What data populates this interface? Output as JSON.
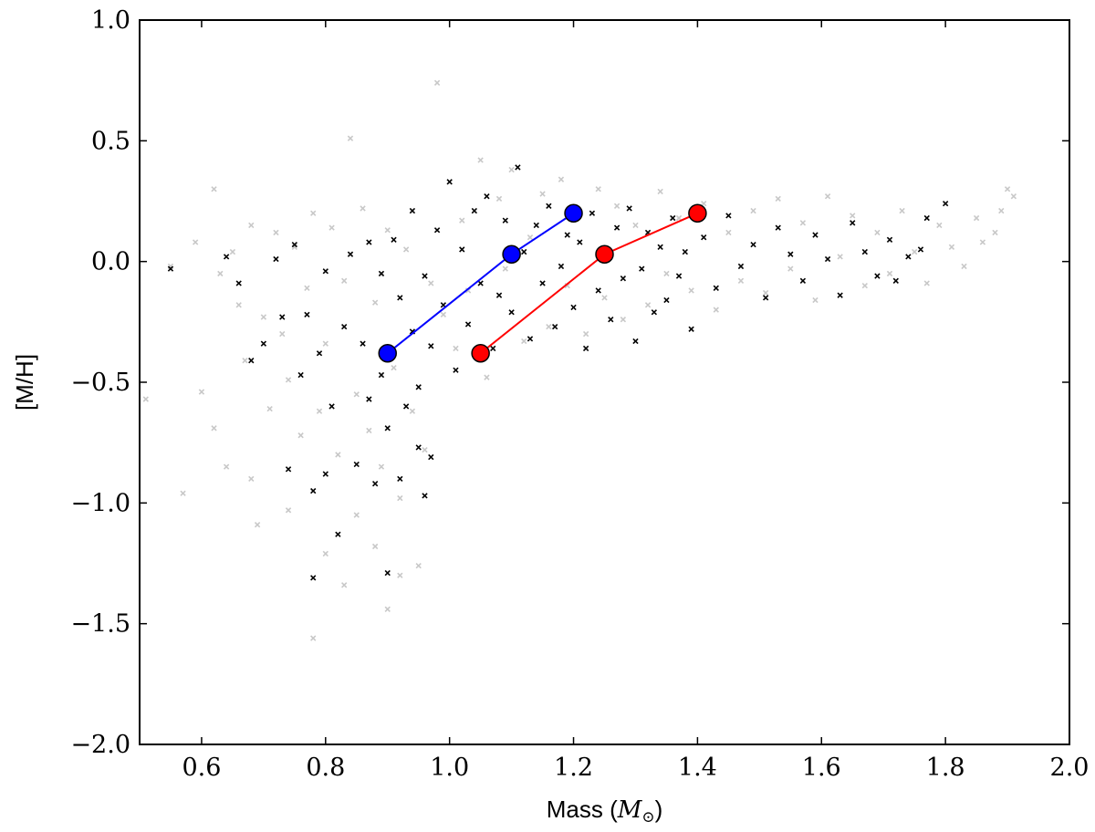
{
  "chart_data": {
    "type": "scatter",
    "title": "",
    "xlabel": "Mass",
    "xlabel_unit_symbol": "M",
    "xlabel_unit_subscript": "⊙",
    "ylabel": "[M/H]",
    "xlim": [
      0.5,
      2.0
    ],
    "ylim": [
      -2.0,
      1.0
    ],
    "xticks": [
      "0.6",
      "0.8",
      "1.0",
      "1.2",
      "1.4",
      "1.6",
      "1.8",
      "2.0"
    ],
    "xtick_values": [
      0.6,
      0.8,
      1.0,
      1.2,
      1.4,
      1.6,
      1.8,
      2.0
    ],
    "yticks": [
      "−2.0",
      "−1.5",
      "−1.0",
      "−0.5",
      "0.0",
      "0.5",
      "1.0"
    ],
    "ytick_values": [
      -2.0,
      -1.5,
      -1.0,
      -0.5,
      0.0,
      0.5,
      1.0
    ],
    "grid": false,
    "legend": "none",
    "marker": "x",
    "series": [
      {
        "color": "#c8c8c8",
        "points": [
          [
            0.51,
            -0.57
          ],
          [
            0.55,
            -0.02
          ],
          [
            0.57,
            -0.96
          ],
          [
            0.59,
            0.08
          ],
          [
            0.6,
            -0.54
          ],
          [
            0.62,
            0.3
          ],
          [
            0.62,
            -0.69
          ],
          [
            0.63,
            -0.05
          ],
          [
            0.64,
            -0.85
          ],
          [
            0.65,
            0.04
          ],
          [
            0.66,
            -0.18
          ],
          [
            0.67,
            -0.41
          ],
          [
            0.68,
            0.15
          ],
          [
            0.68,
            -0.9
          ],
          [
            0.69,
            -1.09
          ],
          [
            0.7,
            -0.23
          ],
          [
            0.71,
            -0.61
          ],
          [
            0.72,
            0.12
          ],
          [
            0.73,
            -0.3
          ],
          [
            0.74,
            -0.49
          ],
          [
            0.74,
            -1.03
          ],
          [
            0.75,
            0.06
          ],
          [
            0.76,
            -0.72
          ],
          [
            0.77,
            -0.11
          ],
          [
            0.78,
            0.2
          ],
          [
            0.78,
            -1.56
          ],
          [
            0.79,
            -0.62
          ],
          [
            0.8,
            -0.34
          ],
          [
            0.8,
            -1.21
          ],
          [
            0.81,
            0.14
          ],
          [
            0.82,
            -0.8
          ],
          [
            0.83,
            -0.08
          ],
          [
            0.83,
            -1.34
          ],
          [
            0.84,
            0.51
          ],
          [
            0.85,
            -0.55
          ],
          [
            0.85,
            -1.05
          ],
          [
            0.86,
            0.22
          ],
          [
            0.87,
            -0.7
          ],
          [
            0.88,
            -0.17
          ],
          [
            0.88,
            -1.18
          ],
          [
            0.89,
            -0.85
          ],
          [
            0.9,
            -1.44
          ],
          [
            0.9,
            0.13
          ],
          [
            0.91,
            -0.44
          ],
          [
            0.92,
            -0.98
          ],
          [
            0.92,
            -1.3
          ],
          [
            0.93,
            0.05
          ],
          [
            0.94,
            -0.62
          ],
          [
            0.95,
            -1.26
          ],
          [
            0.96,
            -0.78
          ],
          [
            0.97,
            -0.09
          ],
          [
            0.98,
            0.74
          ],
          [
            0.99,
            -0.22
          ],
          [
            1.0,
            0.33
          ],
          [
            1.01,
            -0.36
          ],
          [
            1.02,
            0.17
          ],
          [
            1.03,
            -0.12
          ],
          [
            1.05,
            0.42
          ],
          [
            1.06,
            -0.48
          ],
          [
            1.08,
            0.26
          ],
          [
            1.09,
            -0.03
          ],
          [
            1.1,
            0.38
          ],
          [
            1.12,
            -0.33
          ],
          [
            1.13,
            0.1
          ],
          [
            1.15,
            0.28
          ],
          [
            1.16,
            -0.27
          ],
          [
            1.18,
            0.34
          ],
          [
            1.19,
            -0.1
          ],
          [
            1.2,
            0.19
          ],
          [
            1.22,
            -0.3
          ],
          [
            1.24,
            0.3
          ],
          [
            1.25,
            -0.15
          ],
          [
            1.27,
            0.23
          ],
          [
            1.28,
            -0.24
          ],
          [
            1.3,
            0.15
          ],
          [
            1.32,
            -0.18
          ],
          [
            1.34,
            0.29
          ],
          [
            1.35,
            -0.05
          ],
          [
            1.37,
            0.18
          ],
          [
            1.39,
            -0.12
          ],
          [
            1.41,
            0.24
          ],
          [
            1.43,
            -0.2
          ],
          [
            1.45,
            0.12
          ],
          [
            1.47,
            -0.08
          ],
          [
            1.49,
            0.21
          ],
          [
            1.51,
            -0.13
          ],
          [
            1.53,
            0.26
          ],
          [
            1.55,
            -0.03
          ],
          [
            1.57,
            0.16
          ],
          [
            1.59,
            -0.16
          ],
          [
            1.61,
            0.27
          ],
          [
            1.63,
            0.02
          ],
          [
            1.65,
            0.19
          ],
          [
            1.67,
            -0.1
          ],
          [
            1.69,
            0.12
          ],
          [
            1.71,
            -0.05
          ],
          [
            1.73,
            0.21
          ],
          [
            1.75,
            0.04
          ],
          [
            1.77,
            -0.09
          ],
          [
            1.79,
            0.15
          ],
          [
            1.81,
            0.06
          ],
          [
            1.83,
            -0.02
          ],
          [
            1.85,
            0.18
          ],
          [
            1.86,
            0.08
          ],
          [
            1.88,
            0.12
          ],
          [
            1.89,
            0.21
          ],
          [
            1.9,
            0.3
          ],
          [
            1.91,
            0.27
          ]
        ]
      },
      {
        "color": "#000000",
        "points": [
          [
            0.55,
            -0.03
          ],
          [
            0.64,
            0.02
          ],
          [
            0.66,
            -0.09
          ],
          [
            0.68,
            -0.41
          ],
          [
            0.7,
            -0.34
          ],
          [
            0.72,
            0.01
          ],
          [
            0.73,
            -0.23
          ],
          [
            0.74,
            -0.86
          ],
          [
            0.75,
            0.07
          ],
          [
            0.76,
            -0.47
          ],
          [
            0.77,
            -0.22
          ],
          [
            0.78,
            -0.95
          ],
          [
            0.78,
            -1.31
          ],
          [
            0.79,
            -0.38
          ],
          [
            0.8,
            -0.04
          ],
          [
            0.8,
            -0.88
          ],
          [
            0.81,
            -0.6
          ],
          [
            0.82,
            -1.13
          ],
          [
            0.83,
            -0.27
          ],
          [
            0.84,
            0.03
          ],
          [
            0.85,
            -0.84
          ],
          [
            0.86,
            -0.34
          ],
          [
            0.87,
            0.08
          ],
          [
            0.87,
            -0.57
          ],
          [
            0.88,
            -0.92
          ],
          [
            0.89,
            -0.05
          ],
          [
            0.89,
            -0.47
          ],
          [
            0.9,
            -1.29
          ],
          [
            0.9,
            -0.69
          ],
          [
            0.91,
            0.09
          ],
          [
            0.91,
            -0.38
          ],
          [
            0.92,
            -0.9
          ],
          [
            0.92,
            -0.15
          ],
          [
            0.93,
            -0.6
          ],
          [
            0.94,
            0.21
          ],
          [
            0.94,
            -0.29
          ],
          [
            0.95,
            -0.77
          ],
          [
            0.95,
            -0.52
          ],
          [
            0.96,
            -0.06
          ],
          [
            0.96,
            -0.97
          ],
          [
            0.97,
            -0.81
          ],
          [
            0.97,
            -0.35
          ],
          [
            0.98,
            0.13
          ],
          [
            0.99,
            -0.18
          ],
          [
            1.0,
            0.33
          ],
          [
            1.01,
            -0.45
          ],
          [
            1.02,
            0.05
          ],
          [
            1.03,
            -0.26
          ],
          [
            1.04,
            0.21
          ],
          [
            1.05,
            -0.09
          ],
          [
            1.06,
            0.27
          ],
          [
            1.07,
            -0.36
          ],
          [
            1.08,
            -0.14
          ],
          [
            1.09,
            0.17
          ],
          [
            1.1,
            -0.21
          ],
          [
            1.11,
            0.39
          ],
          [
            1.12,
            0.04
          ],
          [
            1.13,
            -0.32
          ],
          [
            1.14,
            0.15
          ],
          [
            1.15,
            -0.09
          ],
          [
            1.16,
            0.23
          ],
          [
            1.17,
            -0.27
          ],
          [
            1.18,
            -0.02
          ],
          [
            1.19,
            0.11
          ],
          [
            1.2,
            -0.19
          ],
          [
            1.21,
            0.08
          ],
          [
            1.22,
            -0.36
          ],
          [
            1.23,
            0.2
          ],
          [
            1.24,
            -0.12
          ],
          [
            1.25,
            0.01
          ],
          [
            1.26,
            -0.24
          ],
          [
            1.27,
            0.14
          ],
          [
            1.28,
            -0.07
          ],
          [
            1.29,
            0.22
          ],
          [
            1.3,
            -0.33
          ],
          [
            1.31,
            -0.03
          ],
          [
            1.32,
            0.12
          ],
          [
            1.33,
            -0.21
          ],
          [
            1.34,
            0.06
          ],
          [
            1.35,
            -0.16
          ],
          [
            1.36,
            0.18
          ],
          [
            1.37,
            -0.06
          ],
          [
            1.38,
            0.04
          ],
          [
            1.39,
            -0.28
          ],
          [
            1.41,
            0.1
          ],
          [
            1.43,
            -0.11
          ],
          [
            1.45,
            0.19
          ],
          [
            1.47,
            -0.02
          ],
          [
            1.49,
            0.07
          ],
          [
            1.51,
            -0.15
          ],
          [
            1.53,
            0.14
          ],
          [
            1.55,
            0.03
          ],
          [
            1.57,
            -0.08
          ],
          [
            1.59,
            0.11
          ],
          [
            1.61,
            0.01
          ],
          [
            1.63,
            -0.14
          ],
          [
            1.65,
            0.16
          ],
          [
            1.67,
            0.04
          ],
          [
            1.69,
            -0.06
          ],
          [
            1.71,
            0.09
          ],
          [
            1.72,
            -0.08
          ],
          [
            1.74,
            0.02
          ],
          [
            1.76,
            0.05
          ],
          [
            1.8,
            0.24
          ],
          [
            1.77,
            0.18
          ]
        ]
      }
    ],
    "lines": [
      {
        "color": "#0000ff",
        "points": [
          [
            0.9,
            -0.38
          ],
          [
            1.1,
            0.03
          ],
          [
            1.2,
            0.2
          ]
        ]
      },
      {
        "color": "#ff0000",
        "points": [
          [
            1.05,
            -0.38
          ],
          [
            1.25,
            0.03
          ],
          [
            1.4,
            0.2
          ]
        ]
      }
    ]
  }
}
